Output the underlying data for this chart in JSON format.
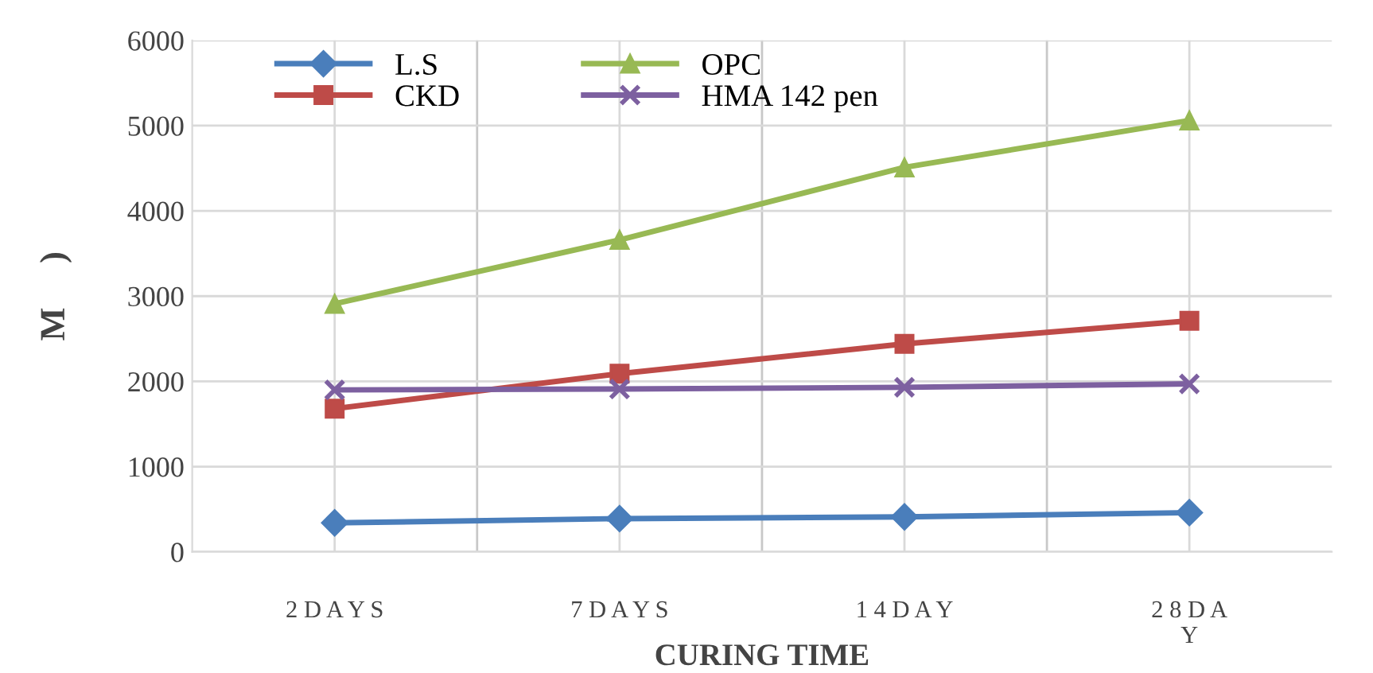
{
  "chart_data": {
    "type": "line",
    "xlabel": "CURING TIME",
    "ylabel": "M     )",
    "categories": [
      "2 D A Y S",
      "7 D A Y S",
      "1 4 D A Y",
      "2 8 D A\nY"
    ],
    "ylim": [
      0,
      6000
    ],
    "yticks": [
      0,
      1000,
      2000,
      3000,
      4000,
      5000,
      6000
    ],
    "grid": true,
    "legend": "top left",
    "series": [
      {
        "name": "L.S",
        "color": "#4a7ebb",
        "marker": "diamond",
        "values": [
          340,
          390,
          410,
          460
        ]
      },
      {
        "name": "CKD",
        "color": "#be4b48",
        "marker": "square",
        "values": [
          1680,
          2090,
          2440,
          2710
        ]
      },
      {
        "name": "OPC",
        "color": "#98b954",
        "marker": "triangle",
        "values": [
          2910,
          3660,
          4510,
          5060
        ]
      },
      {
        "name": "HMA 142 pen",
        "color": "#7d60a0",
        "marker": "cross",
        "values": [
          1900,
          1910,
          1930,
          1970
        ]
      }
    ]
  }
}
